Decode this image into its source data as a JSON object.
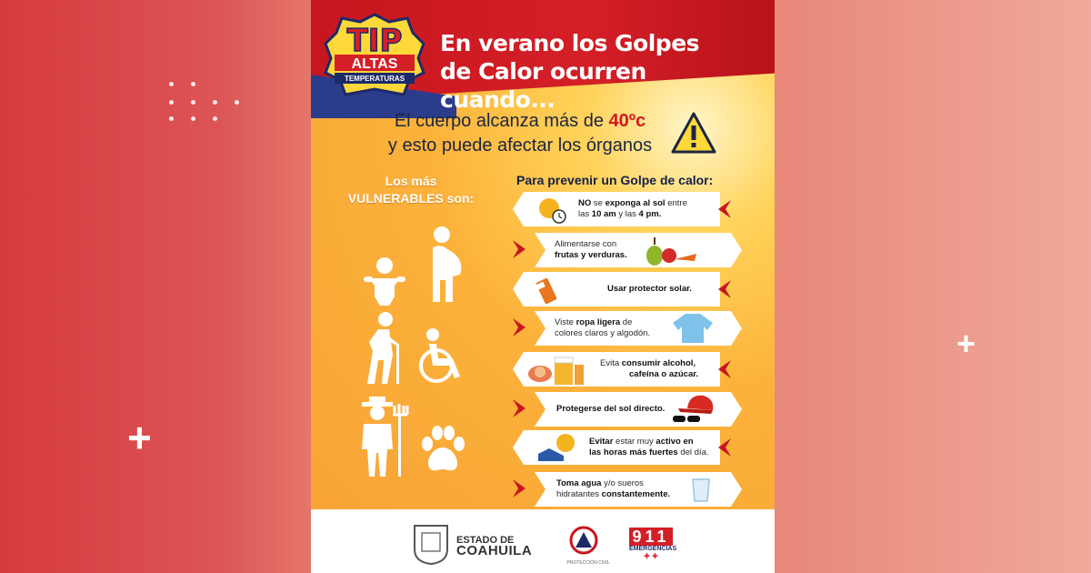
{
  "badge": {
    "tip": "TIP",
    "altas": "ALTAS",
    "temperaturas": "TEMPERATURAS"
  },
  "title": {
    "line1": "En verano los Golpes",
    "line2": "de Calor ocurren cuando..."
  },
  "intro": {
    "line1_pre": "El cuerpo alcanza más de ",
    "line1_hot": "40ºc",
    "line2": "y esto puede afectar los órganos"
  },
  "vulnerable": {
    "line1": "Los más",
    "line2": "VULNERABLES son:"
  },
  "prevent_title": "Para prevenir un Golpe de calor:",
  "tips": [
    {
      "b1": "NO",
      "t1": " se ",
      "b2": "exponga al sol",
      "t2": " entre",
      "t3": "las ",
      "b3": "10 am",
      "t4": " y las ",
      "b4": "4 pm."
    },
    {
      "t1": "Alimentarse con",
      "b1": "frutas y verduras."
    },
    {
      "b1": "Usar protector solar."
    },
    {
      "t1": "Viste ",
      "b1": "ropa ligera",
      "t2": " de",
      "t3": "colores claros y algodón."
    },
    {
      "t1": "Evita ",
      "b1": "consumir alcohol,",
      "b2": "cafeína o azúcar."
    },
    {
      "b1": "Protegerse del sol directo."
    },
    {
      "b1": "Evitar",
      "t1": " estar muy ",
      "b2": "activo en",
      "b3": "las horas más fuertes",
      "t2": " del día."
    },
    {
      "b1": "Toma agua",
      "t1": " y/o sueros",
      "t2": "hidratantes ",
      "b2": "constantemente."
    }
  ],
  "footer": {
    "estado_line1": "ESTADO DE",
    "estado_line2": "COAHUILA",
    "proteccion": "PROTECCIÓN CIVIL",
    "e911_num": "911",
    "e911_label": "EMERGENCIAS"
  },
  "colors": {
    "red": "#d41f27",
    "navy": "#14204a",
    "orange": "#f7a136",
    "yellow": "#ffd35a"
  }
}
